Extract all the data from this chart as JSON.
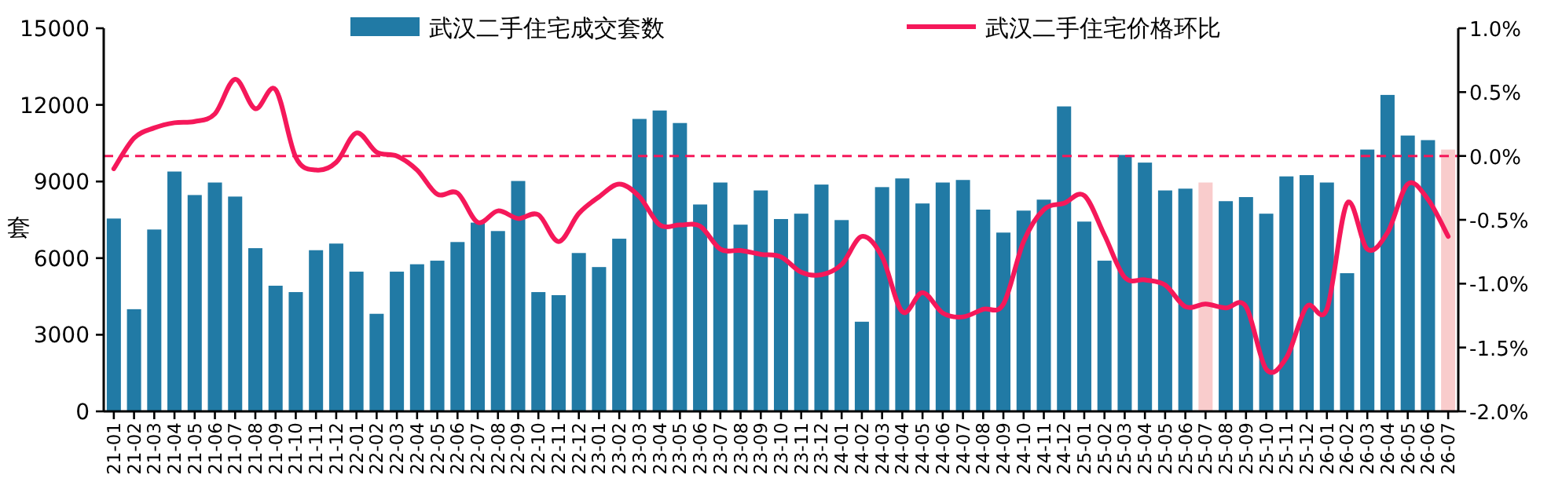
{
  "chart_data": {
    "type": "bar",
    "categories": [
      "21-01",
      "21-02",
      "21-03",
      "21-04",
      "21-05",
      "21-06",
      "21-07",
      "21-08",
      "21-09",
      "21-10",
      "21-11",
      "21-12",
      "22-01",
      "22-02",
      "22-03",
      "22-04",
      "22-05",
      "22-06",
      "22-07",
      "22-08",
      "22-09",
      "22-10",
      "22-11",
      "22-12",
      "23-01",
      "23-02",
      "23-03",
      "23-04",
      "23-05",
      "23-06",
      "23-07",
      "23-08",
      "23-09",
      "23-10",
      "23-11",
      "23-12",
      "24-01",
      "24-02",
      "24-03",
      "24-04",
      "24-05",
      "24-06",
      "24-07",
      "24-08",
      "24-09",
      "24-10",
      "24-11",
      "24-12",
      "25-01",
      "25-02",
      "25-03",
      "25-04",
      "25-05",
      "25-06",
      "25-07",
      "25-08",
      "25-09",
      "25-10",
      "25-11",
      "25-12",
      "26-01",
      "26-02",
      "26-03",
      "26-04",
      "26-05",
      "26-06",
      "26-07"
    ],
    "series": [
      {
        "name": "武汉二手住宅成交套数",
        "color": "#217aa5",
        "colors": [
          "#217aa5",
          "#217aa5",
          "#217aa5",
          "#217aa5",
          "#217aa5",
          "#217aa5",
          "#217aa5",
          "#217aa5",
          "#217aa5",
          "#217aa5",
          "#217aa5",
          "#217aa5",
          "#217aa5",
          "#217aa5",
          "#217aa5",
          "#217aa5",
          "#217aa5",
          "#217aa5",
          "#217aa5",
          "#217aa5",
          "#217aa5",
          "#217aa5",
          "#217aa5",
          "#217aa5",
          "#217aa5",
          "#217aa5",
          "#217aa5",
          "#217aa5",
          "#217aa5",
          "#217aa5",
          "#217aa5",
          "#217aa5",
          "#217aa5",
          "#217aa5",
          "#217aa5",
          "#217aa5",
          "#217aa5",
          "#217aa5",
          "#217aa5",
          "#217aa5",
          "#217aa5",
          "#217aa5",
          "#217aa5",
          "#217aa5",
          "#217aa5",
          "#217aa5",
          "#217aa5",
          "#217aa5",
          "#217aa5",
          "#217aa5",
          "#217aa5",
          "#217aa5",
          "#217aa5",
          "#217aa5",
          "#f9cccc",
          "#217aa5",
          "#217aa5",
          "#217aa5",
          "#217aa5",
          "#217aa5",
          "#217aa5",
          "#217aa5",
          "#217aa5",
          "#217aa5",
          "#217aa5",
          "#217aa5",
          "#f9cccc"
        ],
        "values": [
          7550,
          4000,
          7120,
          9390,
          8470,
          8960,
          8410,
          6390,
          4920,
          4670,
          6310,
          6570,
          5470,
          3820,
          5470,
          5760,
          5900,
          6630,
          7390,
          7060,
          9020,
          4670,
          4550,
          6200,
          5650,
          6760,
          11450,
          11780,
          11290,
          8100,
          8960,
          7310,
          8650,
          7530,
          7740,
          8880,
          7490,
          3510,
          8780,
          9120,
          8140,
          8960,
          9060,
          7900,
          7000,
          7860,
          8290,
          11940,
          7430,
          5900,
          10040,
          9740,
          8650,
          8720,
          8960,
          8230,
          8390,
          7740,
          9200,
          9250,
          8960,
          5410,
          10250,
          12390,
          10800,
          10620,
          10250
        ]
      },
      {
        "name": "武汉二手住宅价格环比",
        "type": "line",
        "axis": "y2",
        "color": "#f5185a",
        "values": [
          -0.1,
          0.14,
          0.22,
          0.26,
          0.27,
          0.33,
          0.6,
          0.37,
          0.52,
          -0.01,
          -0.11,
          -0.05,
          0.18,
          0.03,
          0.0,
          -0.11,
          -0.3,
          -0.29,
          -0.52,
          -0.43,
          -0.49,
          -0.46,
          -0.67,
          -0.45,
          -0.32,
          -0.22,
          -0.32,
          -0.54,
          -0.54,
          -0.55,
          -0.73,
          -0.74,
          -0.77,
          -0.79,
          -0.91,
          -0.93,
          -0.85,
          -0.63,
          -0.79,
          -1.22,
          -1.07,
          -1.23,
          -1.26,
          -1.2,
          -1.16,
          -0.67,
          -0.42,
          -0.37,
          -0.31,
          -0.62,
          -0.95,
          -0.97,
          -1.01,
          -1.18,
          -1.16,
          -1.19,
          -1.18,
          -1.67,
          -1.58,
          -1.18,
          -1.2,
          -0.37,
          -0.73,
          -0.6,
          -0.22,
          -0.34,
          -0.63
        ]
      }
    ],
    "ylabel": "套",
    "ylim": [
      0,
      15000
    ],
    "yticks": [
      0,
      3000,
      6000,
      9000,
      12000,
      15000
    ],
    "y2lim": [
      -2.0,
      1.0
    ],
    "y2ticks": [
      {
        "value": -2.0,
        "label": "-2.0%"
      },
      {
        "value": -1.5,
        "label": "-1.5%"
      },
      {
        "value": -1.0,
        "label": "-1.0%"
      },
      {
        "value": -0.5,
        "label": "-0.5%"
      },
      {
        "value": 0.0,
        "label": "0.0%"
      },
      {
        "value": 0.5,
        "label": "0.5%"
      },
      {
        "value": 1.0,
        "label": "1.0%"
      }
    ],
    "ref_lines": [
      {
        "axis": "y2",
        "value": 0.0,
        "color": "#f5185a",
        "line_style": "dashed"
      }
    ],
    "legend": "top"
  }
}
